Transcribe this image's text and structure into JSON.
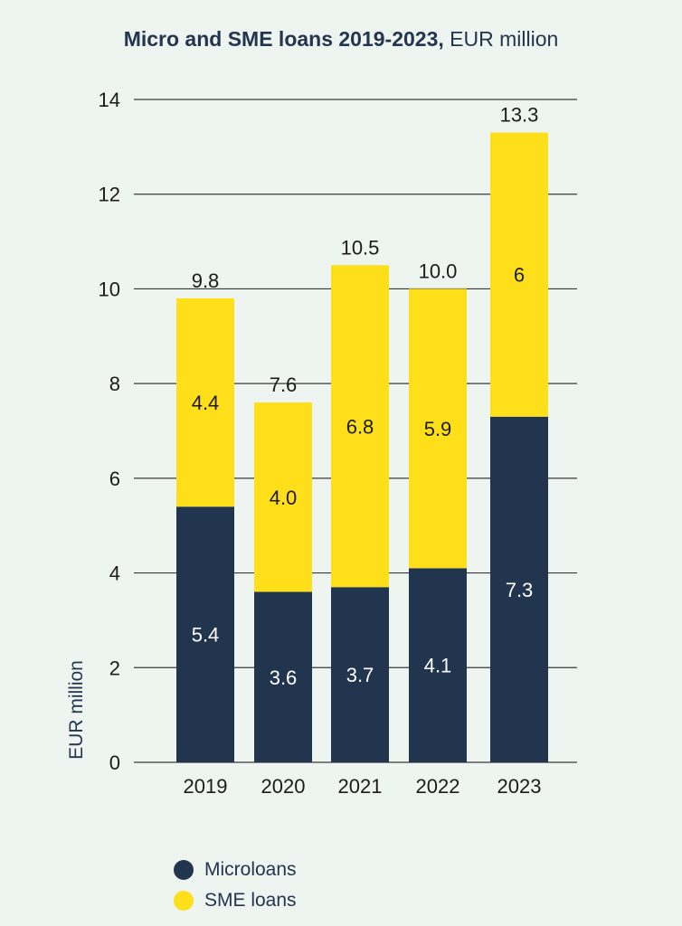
{
  "colors": {
    "microloans": "#22354f",
    "sme_loans": "#ffdf19",
    "background": "#eef4ef",
    "grid": "#3a3a3a",
    "axis_text": "#1c1c1c",
    "title": "#23354f"
  },
  "title_bold": "Micro and SME loans 2019-2023,",
  "title_regular": " EUR million",
  "legend": [
    {
      "name": "Microloans",
      "color": "#22354f"
    },
    {
      "name": "SME loans",
      "color": "#ffdf19"
    }
  ],
  "chart_data": {
    "type": "bar",
    "stacked": true,
    "title": "Micro and SME loans 2019-2023, EUR million",
    "ylabel": "EUR million",
    "xlabel": "",
    "ylim": [
      0,
      14
    ],
    "yticks": [
      0,
      2,
      4,
      6,
      8,
      10,
      12,
      14
    ],
    "grid": true,
    "legend_position": "bottom-left",
    "categories": [
      "2019",
      "2020",
      "2021",
      "2022",
      "2023"
    ],
    "series": [
      {
        "name": "Microloans",
        "values": [
          5.4,
          3.6,
          3.7,
          4.1,
          7.3
        ],
        "labels": [
          "5.4",
          "3.6",
          "3.7",
          "4.1",
          "7.3"
        ]
      },
      {
        "name": "SME loans",
        "values": [
          4.4,
          4.0,
          6.8,
          5.9,
          6
        ],
        "labels": [
          "4.4",
          "4.0",
          "6.8",
          "5.9",
          "6"
        ]
      }
    ],
    "totals": [
      "9.8",
      "7.6",
      "10.5",
      "10.0",
      "13.3"
    ]
  }
}
